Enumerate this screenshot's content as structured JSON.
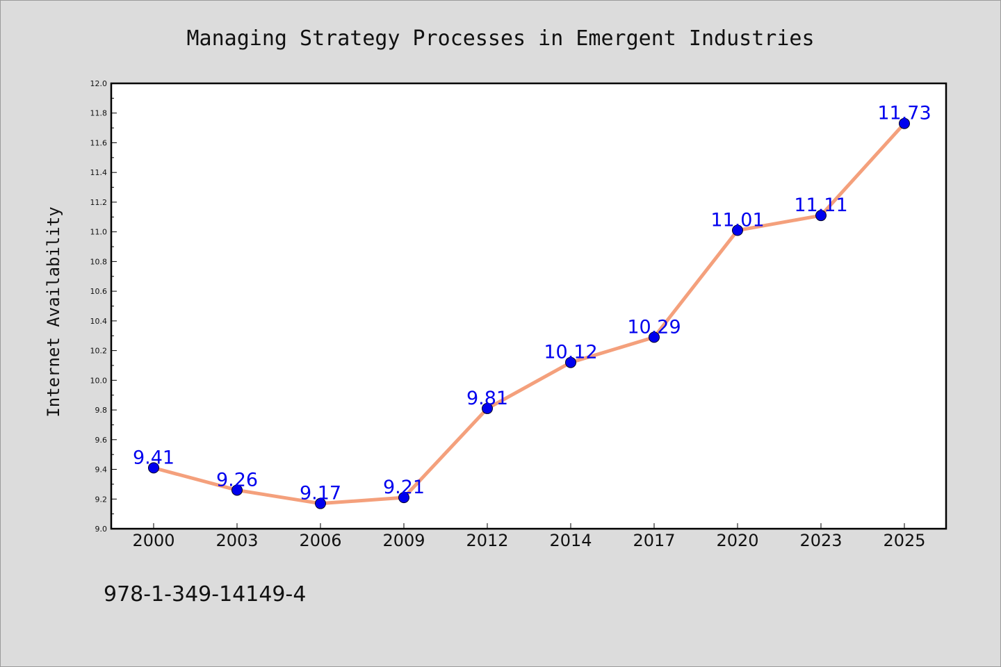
{
  "chart_data": {
    "type": "line",
    "title": "Managing Strategy Processes in Emergent Industries",
    "ylabel": "Internet Availability",
    "xlabel": "",
    "categories": [
      "2000",
      "2003",
      "2006",
      "2009",
      "2012",
      "2014",
      "2017",
      "2020",
      "2023",
      "2025"
    ],
    "series": [
      {
        "values": [
          9.41,
          9.26,
          9.17,
          9.21,
          9.81,
          10.12,
          10.29,
          11.01,
          11.11,
          11.73
        ]
      }
    ],
    "data_labels": [
      "9.41",
      "9.26",
      "9.17",
      "9.21",
      "9.81",
      "10.12",
      "10.29",
      "11.01",
      "11.11",
      "11.73"
    ],
    "ylim": [
      9.0,
      12.0
    ],
    "yticks": [
      "9.0",
      "9.2",
      "9.4",
      "9.6",
      "9.8",
      "10.0",
      "10.2",
      "10.4",
      "10.6",
      "10.8",
      "11.0",
      "11.2",
      "11.4",
      "11.6",
      "11.8",
      "12.0"
    ],
    "grid": false,
    "line_color": "#f4a07c",
    "marker_color": "#0000ee",
    "label_color": "#0000ee"
  },
  "footer": {
    "isbn": "978-1-349-14149-4"
  }
}
